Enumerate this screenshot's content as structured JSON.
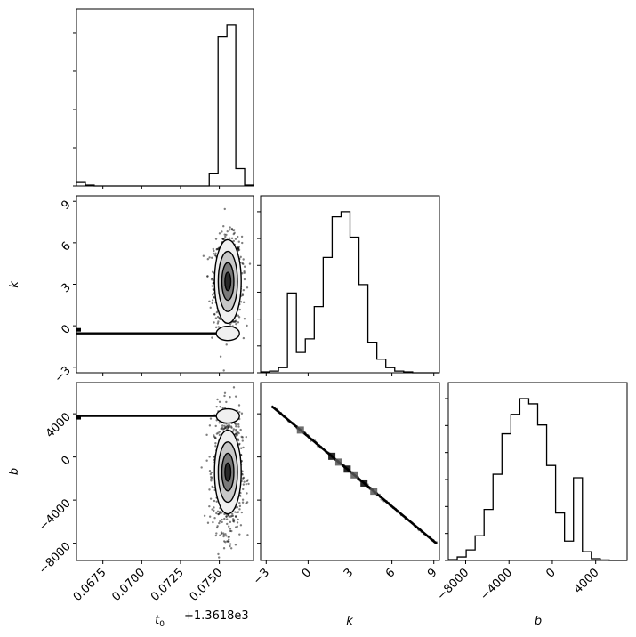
{
  "chart_data": {
    "type": "corner",
    "parameters": [
      "t0",
      "k",
      "b"
    ],
    "labels": {
      "t0": {
        "base": "t",
        "sub": "0"
      },
      "k": "k",
      "b": "b"
    },
    "t0_offset_label": "+1.3618e3",
    "ranges": {
      "t0": [
        0.0658,
        0.0772
      ],
      "k": [
        -3.4,
        9.4
      ],
      "b": [
        -9600,
        6900
      ]
    },
    "ticks": {
      "t0": {
        "values": [
          0.0675,
          0.07,
          0.0725,
          0.075
        ],
        "labels": [
          "0.0675",
          "0.0700",
          "0.0725",
          "0.0750"
        ]
      },
      "k": {
        "values": [
          -3,
          0,
          3,
          6,
          9
        ],
        "labels": [
          "−3",
          "0",
          "3",
          "6",
          "9"
        ]
      },
      "b": {
        "values": [
          -8000,
          -4000,
          0,
          4000
        ],
        "labels": [
          "−8000",
          "−4000",
          "0",
          "4000"
        ]
      }
    },
    "histograms": {
      "t0": {
        "edges": [
          0.0658,
          0.06637,
          0.06694,
          0.06751,
          0.06808,
          0.06865,
          0.06922,
          0.06979,
          0.07036,
          0.07093,
          0.0715,
          0.07207,
          0.07264,
          0.07321,
          0.07378,
          0.07435,
          0.07492,
          0.07549,
          0.07606,
          0.07663,
          0.0772
        ],
        "counts": [
          0.02,
          0.005,
          0,
          0,
          0,
          0,
          0,
          0,
          0,
          0,
          0,
          0,
          0,
          0,
          0,
          0.07,
          0.86,
          0.93,
          0.1,
          0.005
        ]
      },
      "k": {
        "edges": [
          -3.4,
          -2.76,
          -2.12,
          -1.48,
          -0.84,
          -0.2,
          0.44,
          1.08,
          1.72,
          2.36,
          3.0,
          3.64,
          4.28,
          4.92,
          5.56,
          6.2,
          6.84,
          7.48,
          8.12,
          8.76,
          9.4
        ],
        "counts": [
          0.005,
          0.01,
          0.03,
          0.47,
          0.12,
          0.2,
          0.39,
          0.68,
          0.92,
          0.95,
          0.8,
          0.52,
          0.18,
          0.08,
          0.03,
          0.01,
          0.005,
          0,
          0,
          0
        ]
      },
      "b": {
        "edges": [
          -9600,
          -8775,
          -7950,
          -7125,
          -6300,
          -5475,
          -4650,
          -3825,
          -3000,
          -2175,
          -1350,
          -525,
          300,
          1125,
          1950,
          2775,
          3600,
          4425,
          5250,
          6075,
          6900
        ],
        "counts": [
          0.005,
          0.02,
          0.06,
          0.14,
          0.29,
          0.49,
          0.72,
          0.83,
          0.92,
          0.89,
          0.77,
          0.54,
          0.27,
          0.11,
          0.47,
          0.05,
          0.01,
          0.003,
          0,
          0
        ]
      }
    },
    "joint": {
      "t0_k": {
        "center": [
          0.07555,
          3.2
        ],
        "spread": [
          0.00045,
          1.6
        ],
        "secondary": [
          0.07555,
          -0.55
        ],
        "floor_k": -0.55,
        "floor_from_t0": 0.0658
      },
      "t0_b": {
        "center": [
          0.07555,
          -1400
        ],
        "spread": [
          0.00045,
          2700
        ],
        "secondary": [
          0.07555,
          3800
        ],
        "floor_b": 3800,
        "floor_from_t0": 0.0658
      },
      "k_b": {
        "intercept": 1900,
        "slope": -1080,
        "k_from": -2.6,
        "k_to": 9.2,
        "highlight_k": [
          -0.55,
          1.7,
          2.2,
          2.8,
          3.3,
          4.0,
          4.7
        ]
      }
    }
  }
}
